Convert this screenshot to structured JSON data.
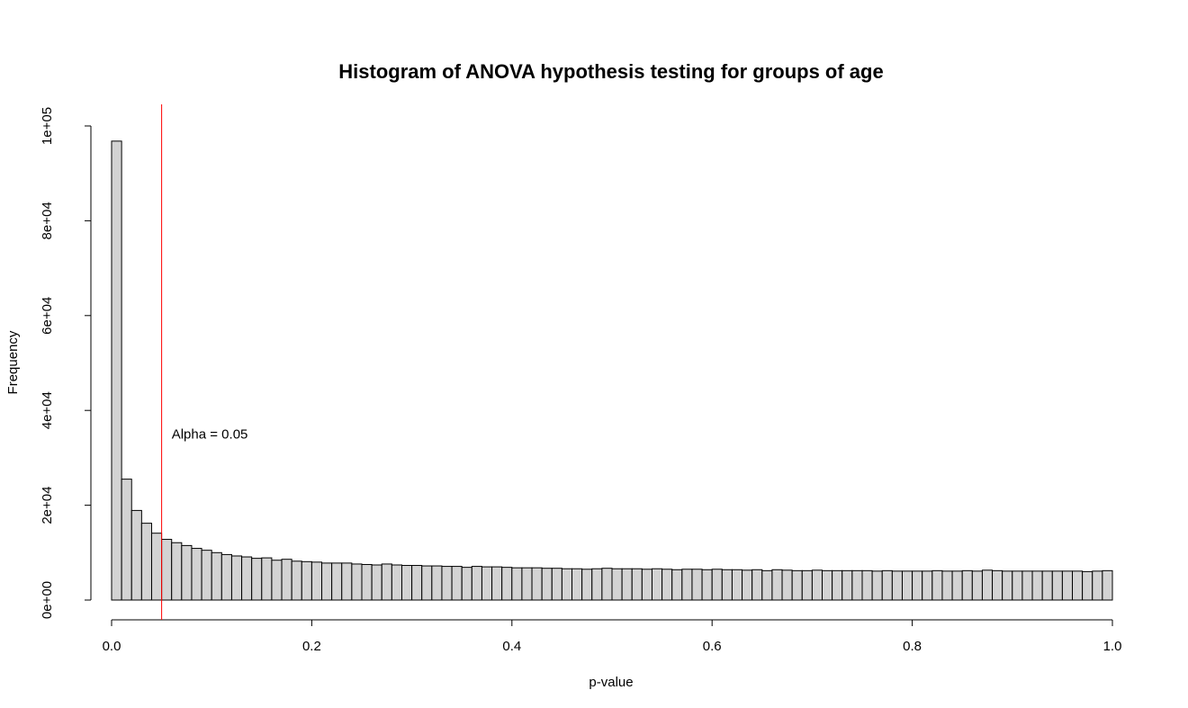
{
  "chart_data": {
    "type": "bar",
    "title": "Histogram of ANOVA hypothesis testing for groups of age",
    "xlabel": "p-value",
    "ylabel": "Frequency",
    "xlim": [
      0,
      1
    ],
    "ylim": [
      0,
      100000
    ],
    "bin_width": 0.01,
    "bins_start": 0,
    "x_ticks": [
      {
        "value": 0.0,
        "label": "0.0"
      },
      {
        "value": 0.2,
        "label": "0.2"
      },
      {
        "value": 0.4,
        "label": "0.4"
      },
      {
        "value": 0.6,
        "label": "0.6"
      },
      {
        "value": 0.8,
        "label": "0.8"
      },
      {
        "value": 1.0,
        "label": "1.0"
      }
    ],
    "y_ticks": [
      {
        "value": 0,
        "label": "0e+00"
      },
      {
        "value": 20000,
        "label": "2e+04"
      },
      {
        "value": 40000,
        "label": "4e+04"
      },
      {
        "value": 60000,
        "label": "6e+04"
      },
      {
        "value": 80000,
        "label": "8e+04"
      },
      {
        "value": 100000,
        "label": "1e+05"
      }
    ],
    "values": [
      96800,
      25500,
      18900,
      16200,
      14100,
      12800,
      12100,
      11500,
      10900,
      10500,
      10000,
      9600,
      9300,
      9100,
      8800,
      8900,
      8400,
      8600,
      8200,
      8100,
      8000,
      7800,
      7800,
      7800,
      7600,
      7500,
      7400,
      7600,
      7400,
      7300,
      7300,
      7200,
      7200,
      7100,
      7100,
      6900,
      7100,
      7000,
      7000,
      6900,
      6800,
      6800,
      6800,
      6700,
      6700,
      6600,
      6600,
      6500,
      6600,
      6700,
      6600,
      6600,
      6600,
      6500,
      6600,
      6500,
      6400,
      6500,
      6500,
      6400,
      6500,
      6400,
      6400,
      6300,
      6400,
      6200,
      6400,
      6300,
      6200,
      6200,
      6300,
      6200,
      6200,
      6200,
      6200,
      6200,
      6100,
      6200,
      6100,
      6100,
      6100,
      6100,
      6200,
      6100,
      6100,
      6200,
      6100,
      6300,
      6200,
      6100,
      6100,
      6100,
      6100,
      6100,
      6100,
      6100,
      6100,
      6000,
      6100,
      6200
    ],
    "reference_line": {
      "x": 0.05,
      "color": "#ff0000"
    },
    "annotation": {
      "text": "Alpha = 0.05",
      "x": 0.06,
      "y": 35000
    },
    "colors": {
      "bar_fill": "#d3d3d3",
      "bar_stroke": "#000000",
      "line": "#ff0000"
    }
  }
}
